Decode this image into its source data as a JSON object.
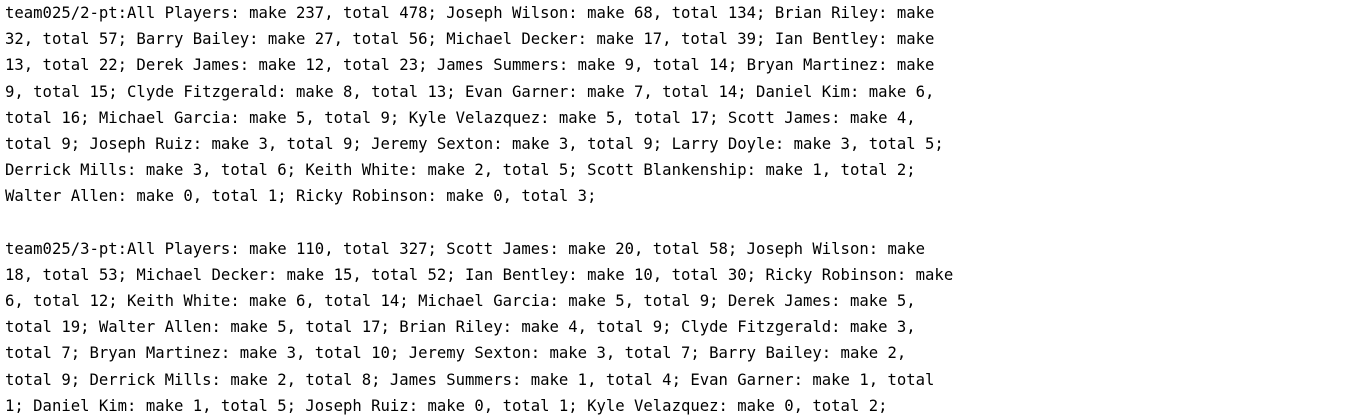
{
  "document": {
    "blocks": [
      {
        "lines": [
          "team025/2-pt:All Players: make 237, total 478; Joseph Wilson: make 68, total 134; Brian Riley: make",
          "32, total 57; Barry Bailey: make 27, total 56; Michael Decker: make 17, total 39; Ian Bentley: make",
          "13, total 22; Derek James: make 12, total 23; James Summers: make 9, total 14; Bryan Martinez: make",
          "9, total 15; Clyde Fitzgerald: make 8, total 13; Evan Garner: make 7, total 14; Daniel Kim: make 6,",
          "total 16; Michael Garcia: make 5, total 9; Kyle Velazquez: make 5, total 17; Scott James: make 4,",
          "total 9; Joseph Ruiz: make 3, total 9; Jeremy Sexton: make 3, total 9; Larry Doyle: make 3, total 5;",
          "Derrick Mills: make 3, total 6; Keith White: make 2, total 5; Scott Blankenship: make 1, total 2;",
          "Walter Allen: make 0, total 1; Ricky Robinson: make 0, total 3;"
        ]
      },
      {
        "lines": [
          "team025/3-pt:All Players: make 110, total 327; Scott James: make 20, total 58; Joseph Wilson: make",
          "18, total 53; Michael Decker: make 15, total 52; Ian Bentley: make 10, total 30; Ricky Robinson: make",
          "6, total 12; Keith White: make 6, total 14; Michael Garcia: make 5, total 9; Derek James: make 5,",
          "total 19; Walter Allen: make 5, total 17; Brian Riley: make 4, total 9; Clyde Fitzgerald: make 3,",
          "total 7; Bryan Martinez: make 3, total 10; Jeremy Sexton: make 3, total 7; Barry Bailey: make 2,",
          "total 9; Derrick Mills: make 2, total 8; James Summers: make 1, total 4; Evan Garner: make 1, total",
          "1; Daniel Kim: make 1, total 5; Joseph Ruiz: make 0, total 1; Kyle Velazquez: make 0, total 2;"
        ]
      }
    ]
  }
}
